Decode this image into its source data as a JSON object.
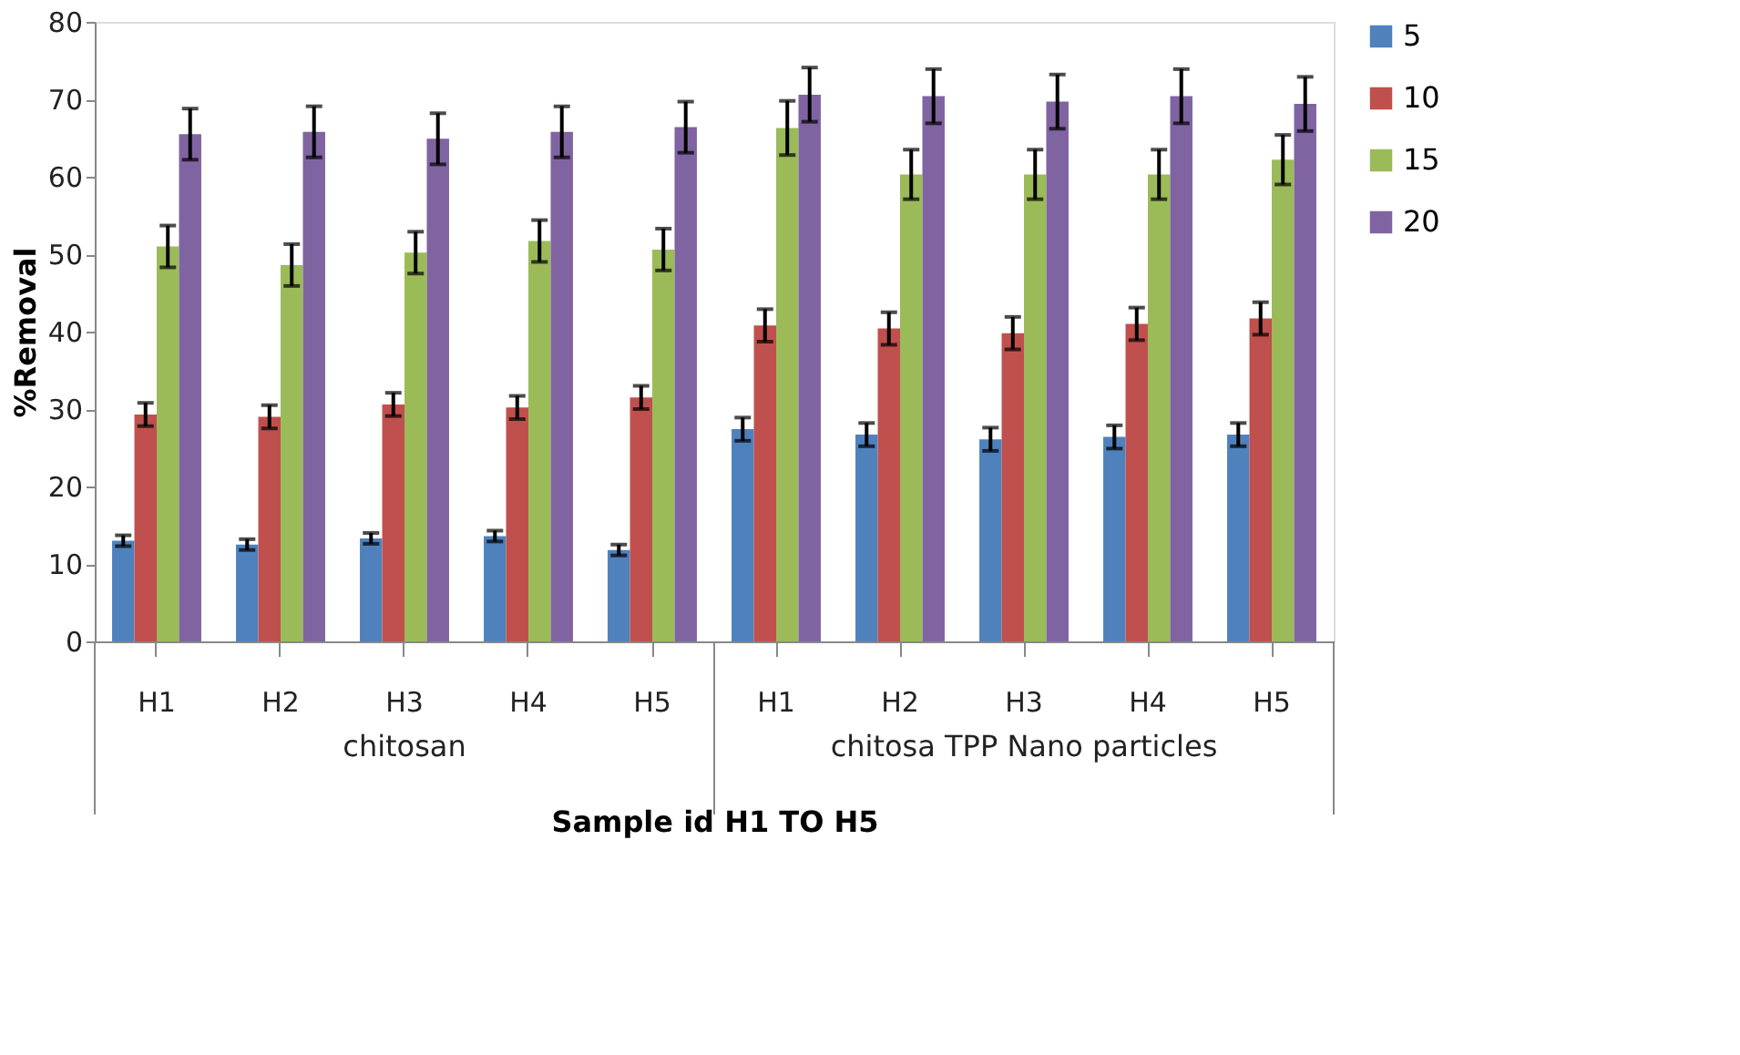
{
  "chart_data": {
    "type": "bar",
    "xlabel": "Sample id H1 TO H5",
    "ylabel": "%Removal",
    "categories": [
      "H1",
      "H2",
      "H3",
      "H4",
      "H5",
      "H1",
      "H2",
      "H3",
      "H4",
      "H5"
    ],
    "series": [
      {
        "name": "5",
        "color": "#4f81bd",
        "values": [
          13,
          12.5,
          13.3,
          13.6,
          11.8,
          27.4,
          26.7,
          26.1,
          26.4,
          26.7
        ],
        "errors": [
          0.7,
          0.7,
          0.7,
          0.7,
          0.7,
          1.5,
          1.5,
          1.5,
          1.5,
          1.5
        ]
      },
      {
        "name": "10",
        "color": "#c0504d",
        "values": [
          29.3,
          29,
          30.6,
          30.2,
          31.5,
          40.8,
          40.4,
          39.8,
          41,
          41.7
        ],
        "errors": [
          1.5,
          1.5,
          1.5,
          1.5,
          1.5,
          2.1,
          2.1,
          2.1,
          2.1,
          2.1
        ]
      },
      {
        "name": "15",
        "color": "#9bbb59",
        "values": [
          51,
          48.6,
          50.2,
          51.7,
          50.6,
          66.3,
          60.3,
          60.3,
          60.3,
          62.2
        ],
        "errors": [
          2.7,
          2.7,
          2.7,
          2.7,
          2.7,
          3.5,
          3.2,
          3.2,
          3.2,
          3.2
        ]
      },
      {
        "name": "20",
        "color": "#8064a2",
        "values": [
          65.5,
          65.8,
          64.9,
          65.8,
          66.4,
          70.6,
          70.4,
          69.7,
          70.4,
          69.4
        ],
        "errors": [
          3.3,
          3.3,
          3.3,
          3.3,
          3.3,
          3.5,
          3.5,
          3.5,
          3.5,
          3.5
        ]
      }
    ],
    "annotations": [
      "chitosan",
      "chitosa TPP Nano particles"
    ],
    "ylim": [
      0,
      80
    ],
    "yticks": [
      0,
      10,
      20,
      30,
      40,
      50,
      60,
      70,
      80
    ],
    "grid": false,
    "legend": "right"
  }
}
